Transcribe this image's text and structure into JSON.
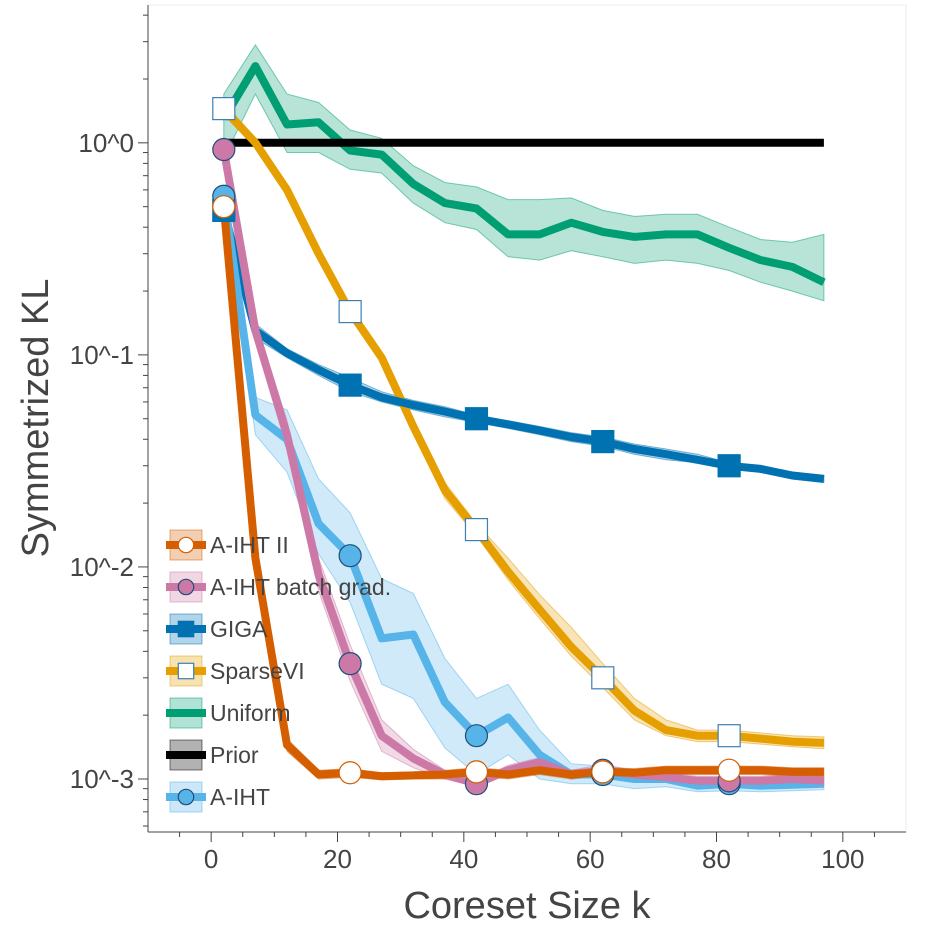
{
  "chart_data": {
    "type": "line",
    "xlabel": "Coreset Size k",
    "ylabel": "Symmetrized KL",
    "y_scale": "log",
    "xlim": [
      -10,
      110
    ],
    "ylim_log10": [
      -3.25,
      0.65
    ],
    "x_ticks": [
      0,
      20,
      40,
      60,
      80,
      100
    ],
    "x_tick_labels": [
      "0",
      "20",
      "40",
      "60",
      "80",
      "100"
    ],
    "y_ticks_log10": [
      0,
      -1,
      -2,
      -3
    ],
    "y_tick_labels": [
      "10^0",
      "10^-1",
      "10^-2",
      "10^-3"
    ],
    "legend_position": "lower-left",
    "series": [
      {
        "name": "Uniform",
        "color": "#009E73",
        "marker": "none",
        "x": [
          2,
          7,
          12,
          17,
          22,
          27,
          32,
          37,
          42,
          47,
          52,
          57,
          62,
          67,
          72,
          77,
          82,
          87,
          92,
          97
        ],
        "y": [
          1.3,
          2.3,
          1.22,
          1.25,
          0.92,
          0.88,
          0.64,
          0.52,
          0.49,
          0.37,
          0.37,
          0.42,
          0.38,
          0.36,
          0.37,
          0.37,
          0.32,
          0.28,
          0.26,
          0.22
        ],
        "y_low": [
          0.85,
          1.7,
          0.9,
          0.9,
          0.75,
          0.72,
          0.52,
          0.42,
          0.39,
          0.29,
          0.28,
          0.31,
          0.29,
          0.27,
          0.28,
          0.27,
          0.25,
          0.22,
          0.2,
          0.18
        ],
        "y_high": [
          1.7,
          2.9,
          1.7,
          1.55,
          1.15,
          1.05,
          0.78,
          0.65,
          0.62,
          0.54,
          0.54,
          0.55,
          0.48,
          0.45,
          0.46,
          0.46,
          0.4,
          0.35,
          0.34,
          0.37
        ]
      },
      {
        "name": "Prior",
        "color": "#000000",
        "marker": "none",
        "x": [
          2,
          97
        ],
        "y": [
          1.0,
          1.0
        ]
      },
      {
        "name": "SparseVI",
        "color": "#E69F00",
        "marker": "square-open",
        "x": [
          2,
          7,
          12,
          17,
          22,
          27,
          32,
          37,
          42,
          47,
          52,
          57,
          62,
          67,
          72,
          77,
          82,
          87,
          92,
          97
        ],
        "y": [
          1.45,
          1.0,
          0.6,
          0.3,
          0.16,
          0.097,
          0.046,
          0.023,
          0.015,
          0.0095,
          0.0063,
          0.0042,
          0.003,
          0.0021,
          0.0017,
          0.0016,
          0.0016,
          0.00155,
          0.0015,
          0.00148
        ],
        "y_low": [
          1.35,
          0.95,
          0.57,
          0.28,
          0.15,
          0.092,
          0.043,
          0.021,
          0.014,
          0.0087,
          0.0057,
          0.0038,
          0.0027,
          0.0019,
          0.0016,
          0.0015,
          0.0015,
          0.00146,
          0.00142,
          0.00139
        ],
        "y_high": [
          1.55,
          1.05,
          0.63,
          0.32,
          0.17,
          0.102,
          0.049,
          0.025,
          0.016,
          0.011,
          0.0074,
          0.0052,
          0.0035,
          0.0024,
          0.0019,
          0.0017,
          0.0017,
          0.00165,
          0.0016,
          0.00158
        ],
        "marker_x": [
          2,
          22,
          42,
          62,
          82
        ]
      },
      {
        "name": "GIGA",
        "color": "#0072B2",
        "marker": "square",
        "x": [
          2,
          7,
          12,
          17,
          22,
          27,
          32,
          37,
          42,
          47,
          52,
          57,
          62,
          67,
          72,
          77,
          82,
          87,
          92,
          97
        ],
        "y": [
          0.48,
          0.13,
          0.102,
          0.085,
          0.072,
          0.063,
          0.058,
          0.054,
          0.05,
          0.047,
          0.044,
          0.041,
          0.039,
          0.036,
          0.034,
          0.032,
          0.03,
          0.029,
          0.027,
          0.026
        ],
        "y_low": [
          0.44,
          0.12,
          0.097,
          0.08,
          0.067,
          0.06,
          0.055,
          0.051,
          0.048,
          0.045,
          0.042,
          0.039,
          0.037,
          0.034,
          0.032,
          0.031,
          0.029,
          0.028,
          0.026,
          0.025
        ],
        "y_high": [
          0.52,
          0.14,
          0.107,
          0.09,
          0.078,
          0.067,
          0.061,
          0.057,
          0.052,
          0.049,
          0.046,
          0.043,
          0.041,
          0.038,
          0.036,
          0.034,
          0.031,
          0.03,
          0.028,
          0.027
        ],
        "marker_x": [
          2,
          22,
          42,
          62,
          82
        ]
      },
      {
        "name": "A-IHT",
        "color": "#56B4E9",
        "marker": "circle",
        "x": [
          2,
          7,
          12,
          17,
          22,
          27,
          32,
          37,
          42,
          47,
          52,
          57,
          62,
          67,
          72,
          77,
          82,
          87,
          92,
          97
        ],
        "y": [
          0.56,
          0.052,
          0.04,
          0.016,
          0.0113,
          0.0046,
          0.0048,
          0.0023,
          0.0016,
          0.00195,
          0.0013,
          0.00105,
          0.00105,
          0.001,
          0.001,
          0.00093,
          0.00095,
          0.00093,
          0.00094,
          0.00095
        ],
        "y_low": [
          0.5,
          0.042,
          0.028,
          0.0115,
          0.0068,
          0.0028,
          0.0024,
          0.0014,
          0.00105,
          0.0013,
          0.001,
          0.00095,
          0.00095,
          0.0009,
          0.00092,
          0.00087,
          0.00088,
          0.00087,
          0.00088,
          0.00089
        ],
        "y_high": [
          0.62,
          0.063,
          0.055,
          0.026,
          0.018,
          0.0088,
          0.0075,
          0.0037,
          0.0024,
          0.0028,
          0.0017,
          0.00118,
          0.00115,
          0.0011,
          0.00108,
          0.001,
          0.001,
          0.00099,
          0.001,
          0.001
        ],
        "marker_x": [
          2,
          22,
          42,
          62,
          82
        ]
      },
      {
        "name": "A-IHT batch grad.",
        "color": "#CC79A7",
        "marker": "circle",
        "x": [
          2,
          7,
          12,
          17,
          22,
          27,
          32,
          37,
          42,
          47,
          52,
          57,
          62,
          67,
          72,
          77,
          82,
          87,
          92,
          97
        ],
        "y": [
          0.93,
          0.13,
          0.042,
          0.0092,
          0.0035,
          0.0016,
          0.00125,
          0.00105,
          0.00095,
          0.0011,
          0.0012,
          0.00105,
          0.0011,
          0.00105,
          0.00102,
          0.00098,
          0.00098,
          0.00098,
          0.001,
          0.00098
        ],
        "y_low": [
          0.89,
          0.115,
          0.036,
          0.0077,
          0.0029,
          0.00135,
          0.00113,
          0.001,
          0.00092,
          0.00105,
          0.00112,
          0.001,
          0.00103,
          0.001,
          0.00097,
          0.00094,
          0.00093,
          0.00094,
          0.00096,
          0.00094
        ],
        "y_high": [
          0.97,
          0.145,
          0.049,
          0.011,
          0.0043,
          0.0019,
          0.00138,
          0.0011,
          0.00099,
          0.00116,
          0.00126,
          0.0011,
          0.00117,
          0.0011,
          0.00107,
          0.00103,
          0.00103,
          0.00103,
          0.00105,
          0.00103
        ],
        "marker_x": [
          2,
          22,
          42,
          62,
          82
        ]
      },
      {
        "name": "A-IHT II",
        "color": "#D55E00",
        "marker": "circle-open",
        "x": [
          2,
          7,
          12,
          17,
          22,
          27,
          32,
          37,
          42,
          47,
          52,
          57,
          62,
          67,
          72,
          77,
          82,
          87,
          92,
          97
        ],
        "y": [
          0.5,
          0.011,
          0.00145,
          0.00105,
          0.00107,
          0.00103,
          0.00104,
          0.00105,
          0.00108,
          0.00105,
          0.0011,
          0.00105,
          0.00108,
          0.00107,
          0.0011,
          0.0011,
          0.0011,
          0.0011,
          0.00108,
          0.00108
        ],
        "y_low": [
          0.46,
          0.0098,
          0.00135,
          0.001,
          0.00102,
          0.00099,
          0.001,
          0.001,
          0.00103,
          0.001,
          0.00105,
          0.001,
          0.00103,
          0.00102,
          0.00105,
          0.00105,
          0.00105,
          0.00105,
          0.00103,
          0.00103
        ],
        "y_high": [
          0.54,
          0.0123,
          0.00155,
          0.0011,
          0.00112,
          0.00107,
          0.00108,
          0.0011,
          0.00113,
          0.0011,
          0.00115,
          0.0011,
          0.00113,
          0.00112,
          0.00115,
          0.00115,
          0.00115,
          0.00115,
          0.00113,
          0.00113
        ],
        "marker_x": [
          2,
          22,
          42,
          62,
          82
        ]
      }
    ],
    "legend_order": [
      "A-IHT II",
      "A-IHT batch grad.",
      "GIGA",
      "SparseVI",
      "Uniform",
      "Prior",
      "A-IHT"
    ]
  }
}
